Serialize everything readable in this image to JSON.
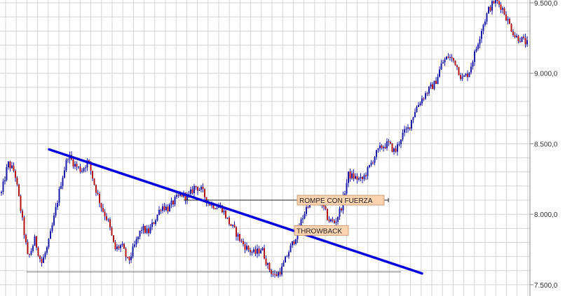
{
  "chart_data": {
    "type": "candlestick",
    "title": "",
    "xlabel": "",
    "ylabel": "",
    "ylim": [
      7420,
      9520
    ],
    "grid": true,
    "y_axis_position": "right",
    "y_ticks": [
      {
        "value": 7500,
        "label": "7.500,0"
      },
      {
        "value": 8000,
        "label": "8.000,0"
      },
      {
        "value": 8500,
        "label": "8.500,0"
      },
      {
        "value": 9000,
        "label": "9.000,0"
      },
      {
        "value": 9500,
        "label": "9.500,0"
      }
    ],
    "price_path": [
      8150,
      8360,
      8300,
      8000,
      7680,
      7820,
      7650,
      7780,
      8000,
      8240,
      8420,
      8350,
      8310,
      8380,
      8200,
      8050,
      7950,
      7750,
      7780,
      7660,
      7780,
      7900,
      7870,
      7960,
      8060,
      8040,
      8100,
      8140,
      8120,
      8200,
      8170,
      8080,
      8060,
      8050,
      7950,
      7880,
      7800,
      7750,
      7720,
      7760,
      7620,
      7560,
      7610,
      7730,
      7830,
      7960,
      8080,
      8100,
      8080,
      7960,
      7940,
      8060,
      8280,
      8260,
      8240,
      8320,
      8420,
      8480,
      8500,
      8440,
      8560,
      8610,
      8740,
      8820,
      8880,
      8930,
      9070,
      9120,
      9080,
      8960,
      9000,
      9150,
      9320,
      9450,
      9520,
      9470,
      9360,
      9260,
      9240,
      9200
    ],
    "overlays": [
      {
        "kind": "trendline",
        "color": "#0000dd",
        "start": 8460,
        "end": 7580
      },
      {
        "kind": "support",
        "color": "#444444",
        "level": 7590
      },
      {
        "kind": "breakout-level",
        "color": "#222222",
        "level": 8100
      }
    ],
    "annotations": [
      {
        "text": "ROMPE CON FUERZA",
        "value": 8100
      },
      {
        "text": "THROWBACK",
        "value": 7885
      }
    ]
  }
}
